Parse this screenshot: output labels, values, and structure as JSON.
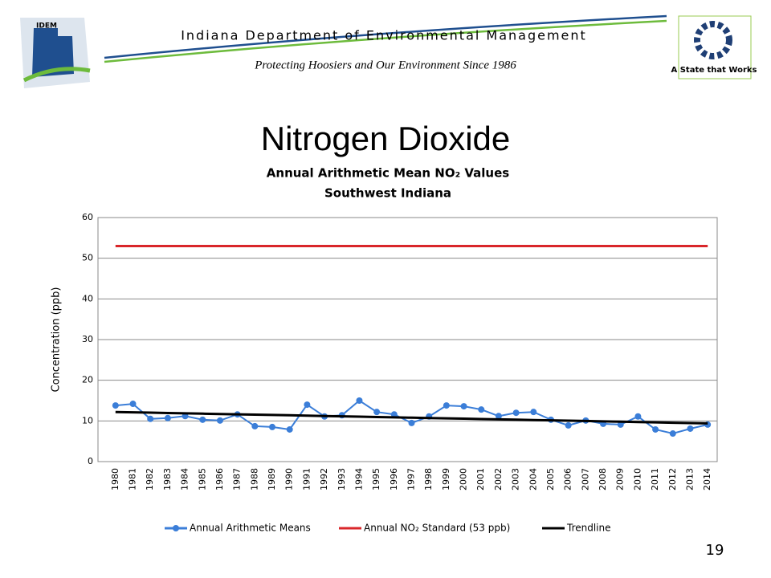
{
  "header": {
    "logo_text": "IDEM",
    "agency": "Indiana Department of Environmental Management",
    "tagline": "Protecting Hoosiers and Our Environment Since 1986",
    "state_slogan": "A State that Works"
  },
  "slide_title": "Nitrogen Dioxide",
  "page_number": 19,
  "chart_data": {
    "type": "line",
    "title": "Annual Arithmetic Mean NO₂ Values",
    "subtitle": "Southwest Indiana",
    "y_label": "Concentration (ppb)",
    "categories": [
      "1980",
      "1981",
      "1982",
      "1983",
      "1984",
      "1985",
      "1986",
      "1987",
      "1988",
      "1989",
      "1990",
      "1991",
      "1992",
      "1993",
      "1994",
      "1995",
      "1996",
      "1997",
      "1998",
      "1999",
      "2000",
      "2001",
      "2002",
      "2003",
      "2004",
      "2005",
      "2006",
      "2007",
      "2008",
      "2009",
      "2010",
      "2011",
      "2012",
      "2013",
      "2014"
    ],
    "series": [
      {
        "name": "Annual Arithmetic Means",
        "color": "#3b7ed8",
        "markers": true,
        "values": [
          13.8,
          14.2,
          10.5,
          10.7,
          11.2,
          10.3,
          10.1,
          11.6,
          8.7,
          8.5,
          7.9,
          14.0,
          11.1,
          11.4,
          15.0,
          12.2,
          11.6,
          9.5,
          11.1,
          13.8,
          13.6,
          12.8,
          11.2,
          12.0,
          12.2,
          10.3,
          8.9,
          10.1,
          9.3,
          9.1,
          11.1,
          7.9,
          6.9,
          8.1,
          9.1
        ]
      },
      {
        "name": "Annual NO₂ Standard (53 ppb)",
        "color": "#d9262a",
        "markers": false,
        "values": [
          53,
          53,
          53,
          53,
          53,
          53,
          53,
          53,
          53,
          53,
          53,
          53,
          53,
          53,
          53,
          53,
          53,
          53,
          53,
          53,
          53,
          53,
          53,
          53,
          53,
          53,
          53,
          53,
          53,
          53,
          53,
          53,
          53,
          53,
          53
        ]
      },
      {
        "name": "Trendline",
        "color": "#000000",
        "markers": false,
        "values": [
          12.2,
          12.12,
          12.04,
          11.95,
          11.87,
          11.79,
          11.71,
          11.62,
          11.54,
          11.46,
          11.38,
          11.29,
          11.21,
          11.13,
          11.05,
          10.96,
          10.88,
          10.8,
          10.72,
          10.63,
          10.55,
          10.47,
          10.39,
          10.3,
          10.22,
          10.14,
          10.06,
          9.98,
          9.89,
          9.81,
          9.73,
          9.65,
          9.56,
          9.48,
          9.4
        ]
      }
    ],
    "ylim": [
      0,
      60
    ],
    "yticks": [
      0,
      10,
      20,
      30,
      40,
      50,
      60
    ],
    "grid": true,
    "legend": "bottom"
  }
}
